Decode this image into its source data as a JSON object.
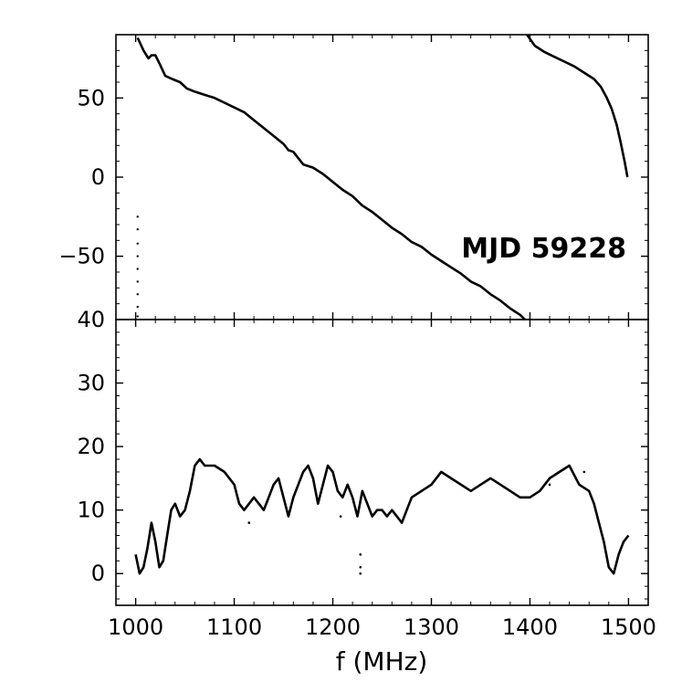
{
  "chart_data": [
    {
      "type": "line",
      "panel": "top",
      "xlim": [
        980,
        1520
      ],
      "ylim": [
        -90,
        90
      ],
      "yticks": [
        50,
        0,
        -50
      ],
      "yticklabels": [
        "50",
        "0",
        "−50"
      ],
      "grid": false,
      "annotation": "MJD 59228",
      "series": [
        {
          "x": [
            1002,
            1008,
            1013,
            1016,
            1020,
            1024,
            1030,
            1037,
            1045,
            1052,
            1060,
            1070,
            1080,
            1090,
            1100,
            1110,
            1120,
            1130,
            1140,
            1150,
            1155,
            1160,
            1165,
            1170,
            1180,
            1190,
            1200,
            1210,
            1220,
            1230,
            1240,
            1250,
            1260,
            1270,
            1280,
            1290,
            1300,
            1310,
            1320,
            1330,
            1340,
            1350,
            1360,
            1370,
            1380,
            1390,
            1395
          ],
          "y": [
            88,
            80,
            75,
            77,
            77,
            72,
            64,
            62,
            60,
            56,
            54,
            52,
            50,
            47,
            44,
            41,
            36,
            31,
            26,
            21,
            17,
            16,
            12,
            8,
            6,
            2,
            -3,
            -8,
            -12,
            -18,
            -22,
            -27,
            -32,
            -36,
            -41,
            -44,
            -49,
            -53,
            -57,
            -61,
            -66,
            -69,
            -74,
            -78,
            -83,
            -87,
            -90
          ]
        },
        {
          "x": [
            1397,
            1405,
            1415,
            1425,
            1435,
            1445,
            1455,
            1465,
            1472,
            1478,
            1483,
            1488,
            1492,
            1496,
            1499
          ],
          "y": [
            90,
            83,
            79,
            76,
            73,
            70,
            66,
            62,
            57,
            50,
            43,
            33,
            22,
            10,
            0
          ]
        },
        {
          "x": [
            1002,
            1002,
            1002,
            1002,
            1002,
            1002,
            1002,
            1002,
            1002
          ],
          "y": [
            -25,
            -33,
            -42,
            -50,
            -58,
            -66,
            -74,
            -82,
            -88
          ]
        }
      ]
    },
    {
      "type": "line",
      "panel": "bottom",
      "xlim": [
        980,
        1520
      ],
      "ylim": [
        -5,
        40
      ],
      "xticks": [
        1000,
        1100,
        1200,
        1300,
        1400,
        1500
      ],
      "xticklabels": [
        "1000",
        "1100",
        "1200",
        "1300",
        "1400",
        "1500"
      ],
      "yticks": [
        0,
        10,
        20,
        30,
        40
      ],
      "yticklabels": [
        "0",
        "10",
        "20",
        "30",
        "40"
      ],
      "xlabel": "f (MHz)",
      "grid": false,
      "series": [
        {
          "x": [
            1000,
            1004,
            1008,
            1012,
            1016,
            1020,
            1024,
            1028,
            1032,
            1036,
            1040,
            1045,
            1050,
            1055,
            1060,
            1065,
            1070,
            1080,
            1090,
            1100,
            1105,
            1110,
            1115,
            1120,
            1125,
            1130,
            1135,
            1140,
            1145,
            1150,
            1155,
            1160,
            1165,
            1170,
            1175,
            1180,
            1185,
            1190,
            1195,
            1200,
            1205,
            1210,
            1215,
            1220,
            1225,
            1230,
            1235,
            1240,
            1245,
            1250,
            1255,
            1260,
            1265,
            1270,
            1275,
            1280,
            1290,
            1300,
            1310,
            1320,
            1330,
            1340,
            1350,
            1360,
            1370,
            1380,
            1390,
            1400,
            1410,
            1420,
            1430,
            1440,
            1450,
            1460,
            1465,
            1470,
            1475,
            1480,
            1485,
            1490,
            1495,
            1500
          ],
          "y": [
            3,
            0,
            1,
            4,
            8,
            5,
            1,
            2,
            6,
            10,
            11,
            9,
            10,
            13,
            17,
            18,
            17,
            17,
            16,
            14,
            11,
            10,
            11,
            12,
            11,
            10,
            12,
            14,
            15,
            12,
            9,
            12,
            14,
            16,
            17,
            15,
            11,
            14,
            17,
            16,
            13,
            12,
            14,
            12,
            9,
            13,
            11,
            9,
            10,
            10,
            9,
            10,
            9,
            8,
            10,
            12,
            13,
            14,
            16,
            15,
            14,
            13,
            14,
            15,
            14,
            13,
            12,
            12,
            13,
            15,
            16,
            17,
            14,
            13,
            11,
            8,
            5,
            1,
            0,
            3,
            5,
            6
          ]
        },
        {
          "x": [
            1115,
            1208,
            1228,
            1228,
            1228,
            1290,
            1420,
            1455
          ],
          "y": [
            8,
            9,
            3,
            1,
            0,
            13,
            14,
            16
          ]
        }
      ]
    }
  ]
}
